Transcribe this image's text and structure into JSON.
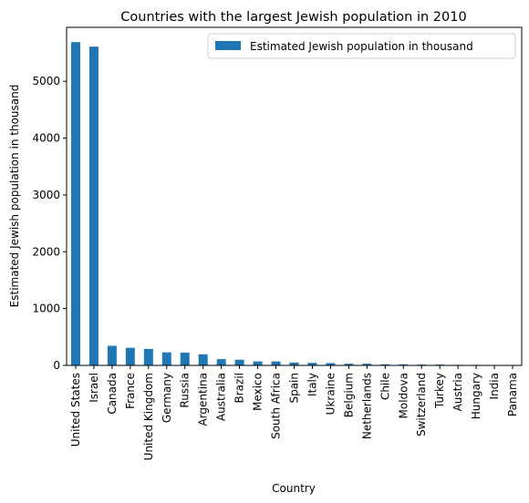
{
  "chart_data": {
    "type": "bar",
    "title": "Countries with the largest Jewish population in 2010",
    "xlabel": "Country",
    "ylabel": "Estimated Jewish population in thousand",
    "ylim": [
      0,
      5950
    ],
    "yticks": [
      0,
      1000,
      2000,
      3000,
      4000,
      5000
    ],
    "grid": false,
    "legend_position": "top-right",
    "bar_color": "#1f77b4",
    "categories": [
      "United States",
      "Israel",
      "Canada",
      "France",
      "United Kingdom",
      "Germany",
      "Russia",
      "Argentina",
      "Australia",
      "Brazil",
      "Mexico",
      "South Africa",
      "Spain",
      "Italy",
      "Ukraine",
      "Belgium",
      "Netherlands",
      "Chile",
      "Moldova",
      "Switzerland",
      "Turkey",
      "Austria",
      "Hungary",
      "India",
      "Panama"
    ],
    "series": [
      {
        "name": "Estimated Jewish population in thousand",
        "values": [
          5690,
          5610,
          345,
          310,
          290,
          230,
          225,
          195,
          110,
          100,
          70,
          70,
          50,
          45,
          40,
          30,
          30,
          20,
          20,
          15,
          15,
          10,
          10,
          5,
          5
        ]
      }
    ]
  }
}
